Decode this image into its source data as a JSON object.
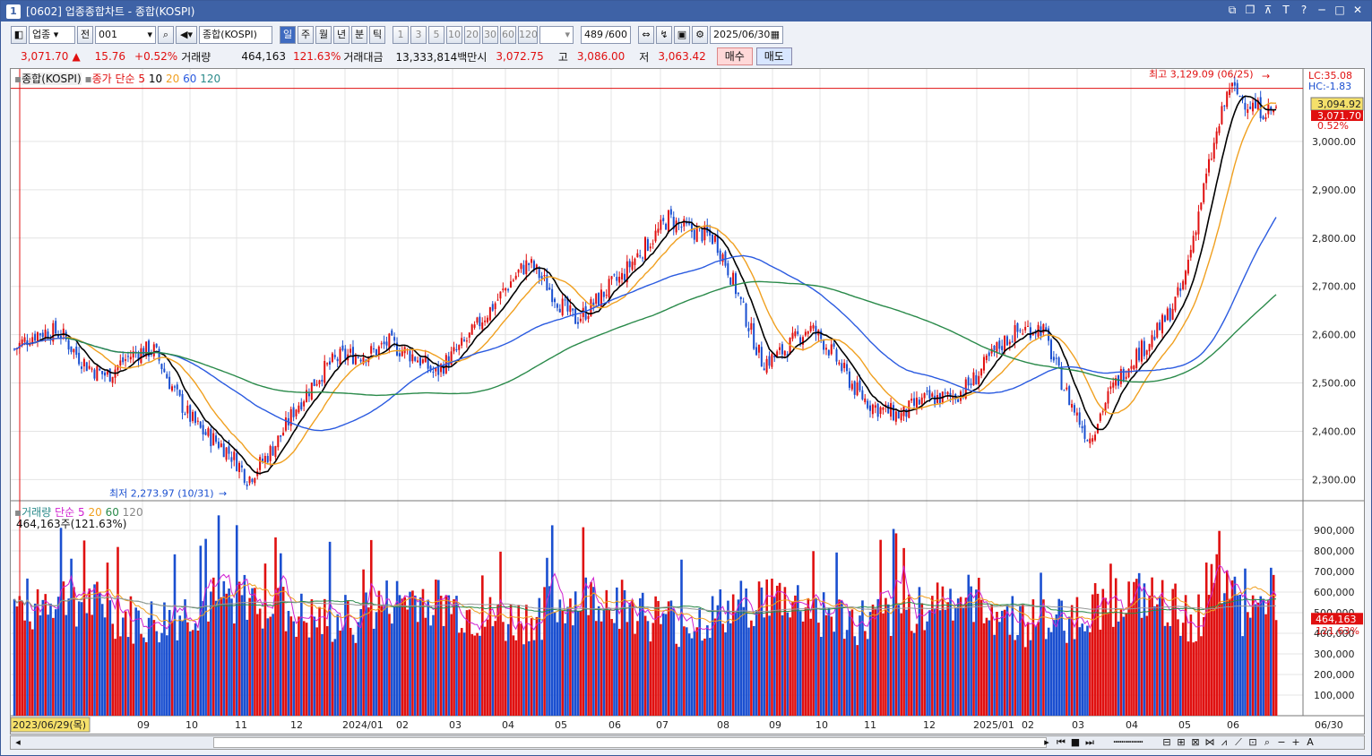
{
  "titlebar": {
    "num": "1",
    "title": "[0602] 업종종합차트 - 종합(KOSPI)"
  },
  "toolbar": {
    "sector_select": "업종",
    "prev_label": "전",
    "code_value": "001",
    "name_value": "종합(KOSPI)",
    "period_tabs": [
      "일",
      "주",
      "월",
      "년",
      "분",
      "틱"
    ],
    "selected_period": "일",
    "interval_buttons": [
      "1",
      "3",
      "5",
      "10",
      "20",
      "30",
      "60",
      "120"
    ],
    "count_value": "489",
    "count_total": "/600",
    "date_value": "2025/06/30"
  },
  "quote": {
    "price": "3,071.70",
    "arrow": "▲",
    "change": "15.76",
    "change_pct": "+0.52%",
    "volume_label": "거래량",
    "volume": "464,163",
    "volume_pct": "121.63%",
    "amount_label": "거래대금",
    "amount": "13,333,814백만",
    "open_label": "시",
    "open": "3,072.75",
    "high_label": "고",
    "high": "3,086.00",
    "low_label": "저",
    "low": "3,063.42",
    "buy_label": "매수",
    "sell_label": "매도"
  },
  "price_legend": {
    "name": "종합(KOSPI)",
    "ma_label": "종가 단순 5",
    "ma10": "10",
    "ma20": "20",
    "ma60": "60",
    "ma120": "120"
  },
  "vol_legend": {
    "name": "거래량",
    "ma_label": "단순 5",
    "ma20": "20",
    "ma60": "60",
    "ma120": "120",
    "sub": "464,163주(121.63%)"
  },
  "annotations": {
    "high": "최고 3,129.09 (06/25)",
    "low": "최저 2,273.97 (10/31)",
    "lc": "LC:35.08",
    "hc": "HC:-1.83",
    "last_box": "3,094.92",
    "cur_box": "3,071.70",
    "cur_pct": "0.52%",
    "vol_box": "464,163",
    "vol_pct": "121.63%"
  },
  "colors": {
    "up": "#e01010",
    "down": "#1a4fd0",
    "ma5": "#000000",
    "ma20": "#f0a020",
    "ma60": "#2b5be0",
    "ma120": "#2a8a4a",
    "vol_ma5": "#d020d0"
  },
  "chart_data": [
    {
      "type": "candlestick",
      "title": "종합(KOSPI)",
      "period": "daily",
      "x_range": [
        "2023/06/29",
        "2025/06/30"
      ],
      "y_ticks": [
        "2,300.00",
        "2,400.00",
        "2,500.00",
        "2,600.00",
        "2,700.00",
        "2,800.00",
        "2,900.00",
        "3,000.00"
      ],
      "ylim": [
        2260,
        3150
      ],
      "close_path": {
        "x": [
          "2023/06",
          "2023/07",
          "2023/08",
          "2023/09",
          "2023/10",
          "2023/10/31",
          "2023/11",
          "2023/12",
          "2024/01",
          "2024/02",
          "2024/03",
          "2024/04",
          "2024/05",
          "2024/06",
          "2024/07",
          "2024/08",
          "2024/09",
          "2024/10",
          "2024/11",
          "2024/12",
          "2025/01",
          "2025/02",
          "2025/03",
          "2025/04",
          "2025/05",
          "2025/06",
          "2025/06/25",
          "2025/06/30"
        ],
        "y": [
          2570,
          2600,
          2520,
          2560,
          2410,
          2290,
          2460,
          2540,
          2600,
          2500,
          2650,
          2730,
          2650,
          2700,
          2860,
          2780,
          2560,
          2600,
          2500,
          2420,
          2480,
          2560,
          2620,
          2380,
          2560,
          2700,
          3110,
          3071.7
        ]
      }
    },
    {
      "type": "bar",
      "title": "거래량",
      "y_ticks": [
        "100,000",
        "200,000",
        "300,000",
        "400,000",
        "500,000",
        "600,000",
        "700,000",
        "800,000",
        "900,000"
      ],
      "ylim": [
        0,
        1000000
      ]
    }
  ],
  "x_axis": [
    "2023/06/29(목)",
    "09",
    "10",
    "11",
    "12",
    "2024/01",
    "02",
    "03",
    "04",
    "05",
    "06",
    "07",
    "08",
    "09",
    "10",
    "11",
    "12",
    "2025/01",
    "02",
    "03",
    "04",
    "05",
    "06",
    "06/30"
  ]
}
